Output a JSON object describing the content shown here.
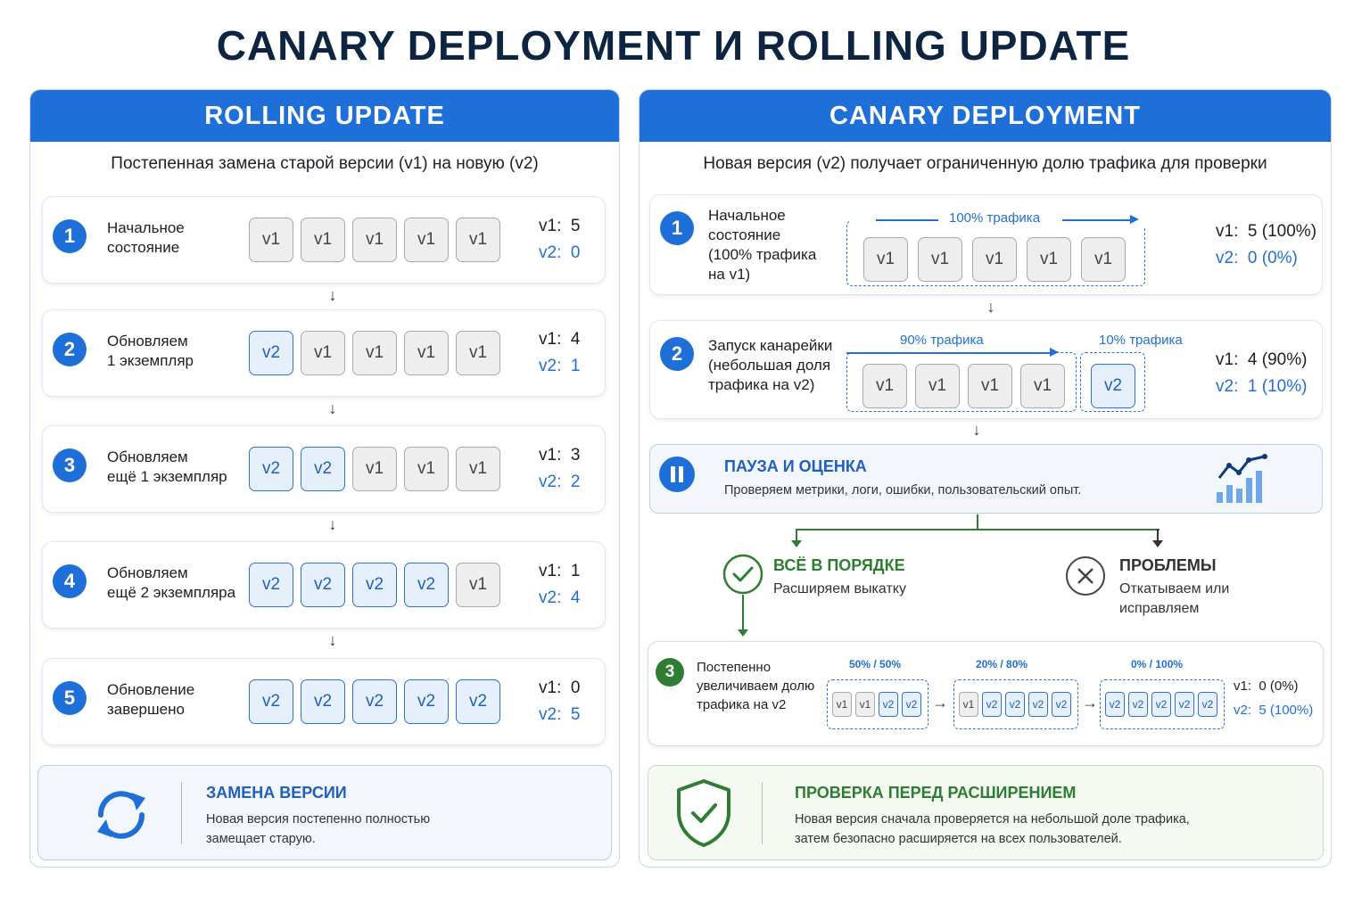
{
  "title": "CANARY DEPLOYMENT И ROLLING UPDATE",
  "rolling": {
    "header": "ROLLING UPDATE",
    "subtitle": "Постепенная замена старой версии (v1) на новую (v2)",
    "steps": [
      {
        "num": "1",
        "label": [
          "Начальное",
          "состояние"
        ],
        "boxes": [
          "v1",
          "v1",
          "v1",
          "v1",
          "v1"
        ],
        "v1_label": "v1:",
        "v1": "5",
        "v2_label": "v2:",
        "v2": "0"
      },
      {
        "num": "2",
        "label": [
          "Обновляем",
          "1 экземпляр"
        ],
        "boxes": [
          "v2",
          "v1",
          "v1",
          "v1",
          "v1"
        ],
        "v1_label": "v1:",
        "v1": "4",
        "v2_label": "v2:",
        "v2": "1"
      },
      {
        "num": "3",
        "label": [
          "Обновляем",
          "ещё 1 экземпляр"
        ],
        "boxes": [
          "v2",
          "v2",
          "v1",
          "v1",
          "v1"
        ],
        "v1_label": "v1:",
        "v1": "3",
        "v2_label": "v2:",
        "v2": "2"
      },
      {
        "num": "4",
        "label": [
          "Обновляем",
          "ещё 2 экземпляра"
        ],
        "boxes": [
          "v2",
          "v2",
          "v2",
          "v2",
          "v1"
        ],
        "v1_label": "v1:",
        "v1": "1",
        "v2_label": "v2:",
        "v2": "4"
      },
      {
        "num": "5",
        "label": [
          "Обновление",
          "завершено"
        ],
        "boxes": [
          "v2",
          "v2",
          "v2",
          "v2",
          "v2"
        ],
        "v1_label": "v1:",
        "v1": "0",
        "v2_label": "v2:",
        "v2": "5"
      }
    ],
    "summary": {
      "title": "ЗАМЕНА ВЕРСИИ",
      "text": [
        "Новая версия постепенно полностью",
        "замещает старую."
      ],
      "icon": "sync-icon"
    }
  },
  "canary": {
    "header": "CANARY DEPLOYMENT",
    "subtitle": "Новая версия (v2) получает ограниченную долю трафика для проверки",
    "step1": {
      "num": "1",
      "label": [
        "Начальное",
        "состояние",
        "(100% трафика",
        "на v1)"
      ],
      "traffic": "100% трафика",
      "boxes": [
        "v1",
        "v1",
        "v1",
        "v1",
        "v1"
      ],
      "v1_label": "v1:",
      "v1": "5 (100%)",
      "v2_label": "v2:",
      "v2": "0 (0%)"
    },
    "step2": {
      "num": "2",
      "label": [
        "Запуск канарейки",
        "(небольшая доля",
        "трафика на v2)"
      ],
      "traffic_a": "90% трафика",
      "traffic_b": "10% трафика",
      "boxes_a": [
        "v1",
        "v1",
        "v1",
        "v1"
      ],
      "boxes_b": [
        "v2"
      ],
      "v1_label": "v1:",
      "v1": "4 (90%)",
      "v2_label": "v2:",
      "v2": "1 (10%)"
    },
    "pause": {
      "title": "ПАУЗА И ОЦЕНКА",
      "text": "Проверяем метрики, логи, ошибки, пользовательский опыт.",
      "icon": "pause-icon",
      "chart_icon": "metrics-chart-icon"
    },
    "ok": {
      "title": "ВСЁ В ПОРЯДКЕ",
      "text": "Расширяем выкатку",
      "icon": "check-circle-icon"
    },
    "problem": {
      "title": "ПРОБЛЕМЫ",
      "text": [
        "Откатываем или",
        "исправляем"
      ],
      "icon": "x-circle-icon"
    },
    "step3": {
      "num": "3",
      "label": [
        "Постепенно",
        "увеличиваем долю",
        "трафика на v2"
      ],
      "stages": [
        {
          "label": "50% / 50%",
          "boxes": [
            "v1",
            "v1",
            "v2",
            "v2"
          ]
        },
        {
          "label": "20% / 80%",
          "boxes": [
            "v1",
            "v2",
            "v2",
            "v2",
            "v2"
          ]
        },
        {
          "label": "0% / 100%",
          "boxes": [
            "v2",
            "v2",
            "v2",
            "v2",
            "v2"
          ]
        }
      ],
      "v1_label": "v1:",
      "v1": "0 (0%)",
      "v2_label": "v2:",
      "v2": "5 (100%)"
    },
    "summary": {
      "title": "ПРОВЕРКА ПЕРЕД РАСШИРЕНИЕМ",
      "text": [
        "Новая версия сначала проверяется на небольшой доле трафика,",
        "затем безопасно расширяется на всех пользователей."
      ],
      "icon": "shield-check-icon"
    }
  },
  "colors": {
    "accent": "#1f6fd8",
    "green": "#2e7d32",
    "v1_fill": "#eeeeee",
    "v2_fill": "#e6f0fd"
  }
}
